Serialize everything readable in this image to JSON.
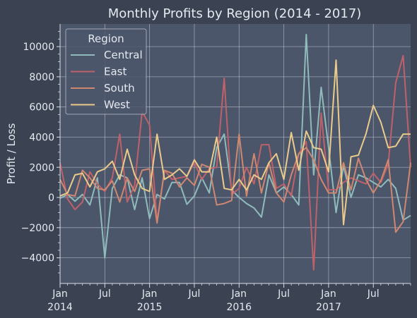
{
  "chart_data": {
    "type": "line",
    "title": "Monthly Profits by Region (2014 - 2017)",
    "xlabel": "",
    "ylabel": "Profit / Loss",
    "x_start": "2014-01",
    "x_end": "2017-12",
    "xlim": [
      "2014-01",
      "2017-12"
    ],
    "ylim": [
      -5700,
      11500
    ],
    "y_ticks": [
      -4000,
      -2000,
      0,
      2000,
      4000,
      6000,
      8000,
      10000
    ],
    "y_tick_labels": [
      "−4000",
      "−2000",
      "0",
      "2000",
      "4000",
      "6000",
      "8000",
      "10000"
    ],
    "x_ticks": [
      {
        "date": "2014-01",
        "label": "Jan",
        "year": "2014"
      },
      {
        "date": "2014-07",
        "label": "Jul",
        "year": ""
      },
      {
        "date": "2015-01",
        "label": "Jan",
        "year": "2015"
      },
      {
        "date": "2015-07",
        "label": "Jul",
        "year": ""
      },
      {
        "date": "2016-01",
        "label": "Jan",
        "year": "2016"
      },
      {
        "date": "2016-07",
        "label": "Jul",
        "year": ""
      },
      {
        "date": "2017-01",
        "label": "Jan",
        "year": "2017"
      },
      {
        "date": "2017-07",
        "label": "Jul",
        "year": ""
      }
    ],
    "grid": true,
    "legend_title": "Region",
    "legend_position": "top-left",
    "colors": {
      "background": "#3b4252",
      "plot_background": "#4c566a",
      "grid": "#d8dee9",
      "text": "#e5e9f0"
    },
    "series": [
      {
        "name": "Central",
        "color": "#8fbcbb",
        "values": [
          -50,
          200,
          -250,
          200,
          -500,
          1300,
          -4000,
          600,
          1500,
          1300,
          -800,
          1300,
          -1400,
          200,
          -100,
          1000,
          1000,
          -450,
          100,
          1300,
          300,
          3300,
          4200,
          500,
          0,
          -400,
          -700,
          -1300,
          1500,
          300,
          700,
          200,
          -500,
          10800,
          1500,
          7300,
          3300,
          -1000,
          2100,
          0,
          1500,
          1300,
          1000,
          700,
          1200,
          600,
          -1500,
          -1200
        ]
      },
      {
        "name": "East",
        "color": "#bf616a",
        "values": [
          2300,
          -100,
          -800,
          -300,
          1700,
          900,
          400,
          1300,
          4200,
          -300,
          800,
          5700,
          4800,
          -1600,
          1800,
          1200,
          1300,
          1400,
          2300,
          1200,
          1900,
          2000,
          7900,
          200,
          600,
          2000,
          900,
          3500,
          3500,
          600,
          900,
          100,
          2900,
          3700,
          -4800,
          5600,
          500,
          500,
          1000,
          1300,
          1100,
          900,
          1600,
          1000,
          2200,
          7600,
          9400,
          2000
        ]
      },
      {
        "name": "South",
        "color": "#d08770",
        "values": [
          1200,
          200,
          100,
          1800,
          1300,
          600,
          500,
          1100,
          -300,
          1300,
          400,
          1800,
          1900,
          -1700,
          1800,
          1600,
          700,
          1300,
          800,
          2200,
          2000,
          -500,
          -400,
          -200,
          4200,
          100,
          2900,
          300,
          2300,
          300,
          -300,
          1500,
          2900,
          3300,
          2500,
          1200,
          300,
          300,
          2300,
          500,
          2600,
          1200,
          300,
          1100,
          2500,
          -2300,
          -1600,
          2300
        ]
      },
      {
        "name": "West",
        "color": "#ebcb8b",
        "values": [
          100,
          300,
          1500,
          1600,
          700,
          1700,
          1900,
          2400,
          1200,
          3200,
          1500,
          600,
          400,
          4200,
          1200,
          1500,
          1900,
          1400,
          2500,
          1700,
          1700,
          4000,
          600,
          500,
          1200,
          500,
          1500,
          1200,
          2300,
          2900,
          1200,
          4300,
          1800,
          4400,
          3300,
          3200,
          1700,
          9100,
          -1800,
          2700,
          2800,
          4200,
          6100,
          5000,
          3300,
          3400,
          4200,
          4200
        ]
      }
    ]
  }
}
